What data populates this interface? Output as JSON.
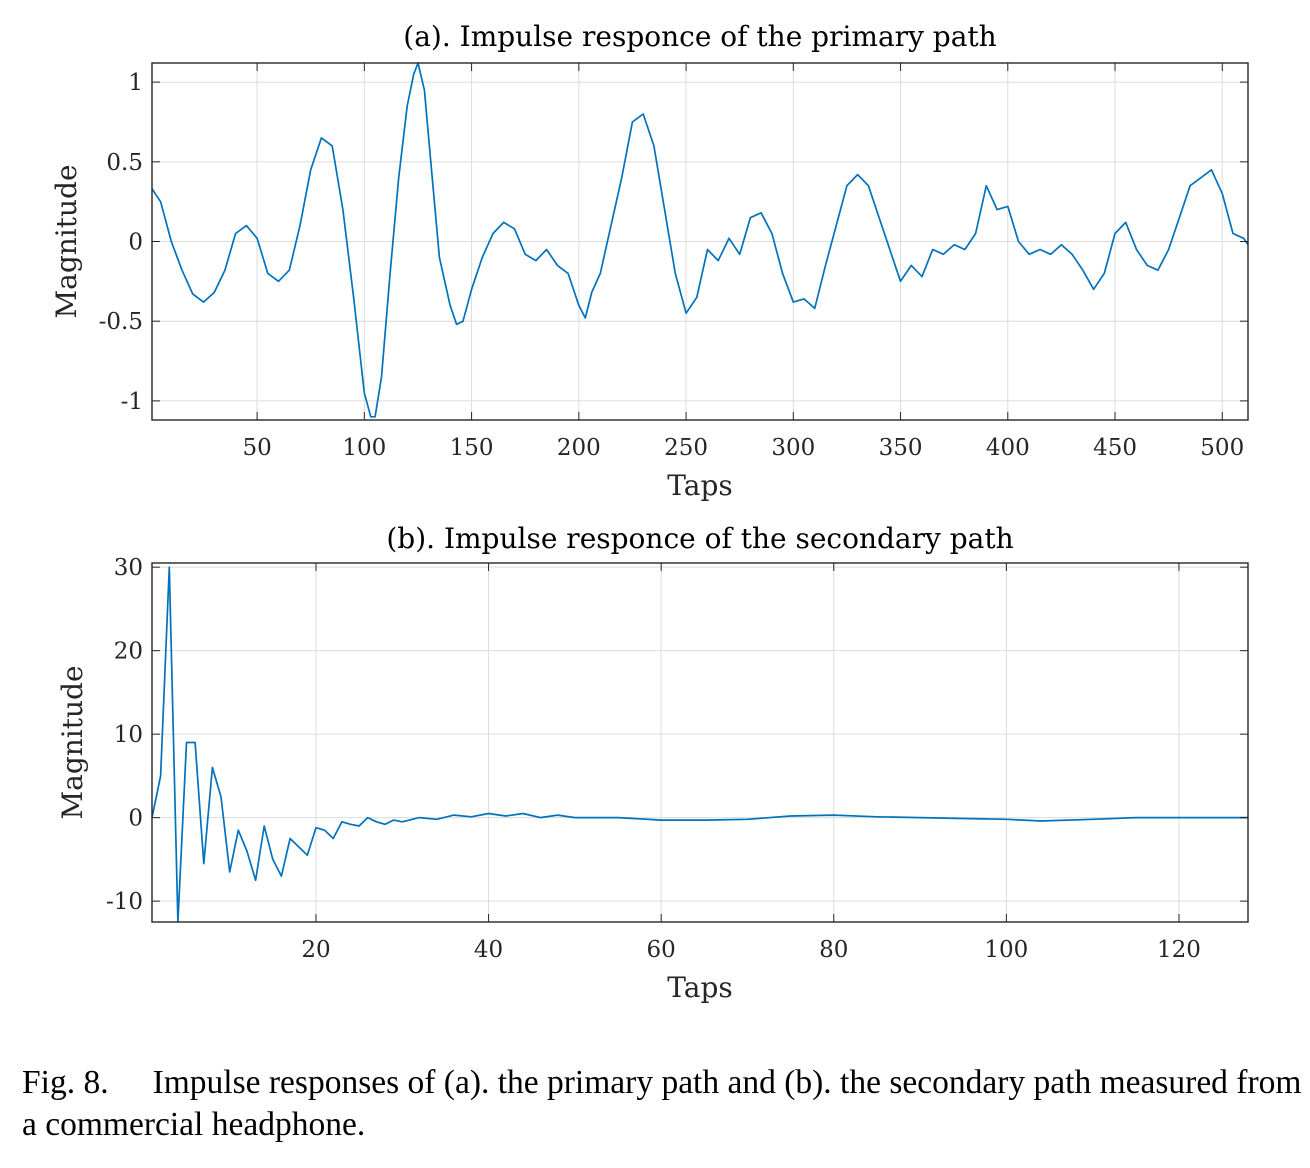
{
  "chart_data": [
    {
      "type": "line",
      "title": "(a). Impulse responce of the primary path",
      "xlabel": "Taps",
      "ylabel": "Magnitude",
      "xlim": [
        1,
        512
      ],
      "ylim": [
        -1.12,
        1.12
      ],
      "xticks": [
        50,
        100,
        150,
        200,
        250,
        300,
        350,
        400,
        450,
        500
      ],
      "yticks": [
        -1,
        -0.5,
        0,
        0.5,
        1
      ],
      "ytick_labels": [
        "-1",
        "-0.5",
        "0",
        "0.5",
        "1"
      ],
      "grid": true,
      "line_color": "#0072BD",
      "series": [
        {
          "x": [
            1,
            5,
            10,
            15,
            20,
            25,
            30,
            35,
            40,
            45,
            50,
            55,
            60,
            65,
            70,
            75,
            80,
            85,
            90,
            95,
            100,
            103,
            105,
            108,
            112,
            116,
            120,
            123,
            125,
            128,
            131,
            135,
            140,
            143,
            146,
            150,
            155,
            160,
            165,
            170,
            175,
            180,
            185,
            190,
            195,
            200,
            203,
            206,
            210,
            215,
            220,
            225,
            230,
            235,
            240,
            245,
            250,
            255,
            260,
            265,
            270,
            275,
            280,
            285,
            290,
            295,
            300,
            305,
            310,
            315,
            320,
            325,
            330,
            335,
            340,
            345,
            350,
            355,
            360,
            365,
            370,
            375,
            380,
            385,
            390,
            395,
            400,
            405,
            410,
            415,
            420,
            425,
            430,
            435,
            440,
            445,
            450,
            455,
            460,
            465,
            470,
            475,
            480,
            485,
            490,
            495,
            500,
            505,
            510,
            512
          ],
          "y": [
            0.33,
            0.25,
            0.0,
            -0.18,
            -0.33,
            -0.38,
            -0.32,
            -0.18,
            0.05,
            0.1,
            0.02,
            -0.2,
            -0.25,
            -0.18,
            0.1,
            0.45,
            0.65,
            0.6,
            0.2,
            -0.35,
            -0.95,
            -1.1,
            -1.1,
            -0.85,
            -0.2,
            0.4,
            0.85,
            1.05,
            1.12,
            0.95,
            0.5,
            -0.1,
            -0.4,
            -0.52,
            -0.5,
            -0.3,
            -0.1,
            0.05,
            0.12,
            0.08,
            -0.08,
            -0.12,
            -0.05,
            -0.15,
            -0.2,
            -0.4,
            -0.48,
            -0.32,
            -0.2,
            0.1,
            0.4,
            0.75,
            0.8,
            0.6,
            0.2,
            -0.2,
            -0.45,
            -0.35,
            -0.05,
            -0.12,
            0.02,
            -0.08,
            0.15,
            0.18,
            0.05,
            -0.2,
            -0.38,
            -0.36,
            -0.42,
            -0.15,
            0.1,
            0.35,
            0.42,
            0.35,
            0.15,
            -0.05,
            -0.25,
            -0.15,
            -0.22,
            -0.05,
            -0.08,
            -0.02,
            -0.05,
            0.05,
            0.35,
            0.2,
            0.22,
            0.0,
            -0.08,
            -0.05,
            -0.08,
            -0.02,
            -0.08,
            -0.18,
            -0.3,
            -0.2,
            0.05,
            0.12,
            -0.05,
            -0.15,
            -0.18,
            -0.05,
            0.15,
            0.35,
            0.4,
            0.45,
            0.3,
            0.05,
            0.02,
            -0.02
          ]
        }
      ]
    },
    {
      "type": "line",
      "title": "(b). Impulse responce of the secondary path",
      "xlabel": "Taps",
      "ylabel": "Magnitude",
      "xlim": [
        1,
        128
      ],
      "ylim": [
        -12.5,
        30.5
      ],
      "xticks": [
        20,
        40,
        60,
        80,
        100,
        120
      ],
      "yticks": [
        -10,
        0,
        10,
        20,
        30
      ],
      "ytick_labels": [
        "-10",
        "0",
        "10",
        "20",
        "30"
      ],
      "grid": true,
      "line_color": "#0072BD",
      "series": [
        {
          "x": [
            1,
            2,
            3,
            4,
            5,
            6,
            7,
            8,
            9,
            10,
            11,
            12,
            13,
            14,
            15,
            16,
            17,
            18,
            19,
            20,
            21,
            22,
            23,
            24,
            25,
            26,
            27,
            28,
            29,
            30,
            32,
            34,
            36,
            38,
            40,
            42,
            44,
            46,
            48,
            50,
            55,
            60,
            65,
            70,
            75,
            80,
            85,
            90,
            95,
            100,
            104,
            110,
            115,
            120,
            125,
            128
          ],
          "y": [
            0,
            5,
            30,
            -12.5,
            9,
            9,
            -5.5,
            6,
            2.5,
            -6.5,
            -1.5,
            -4,
            -7.5,
            -1,
            -5,
            -7,
            -2.5,
            -3.5,
            -4.5,
            -1.2,
            -1.5,
            -2.5,
            -0.5,
            -0.8,
            -1,
            0,
            -0.5,
            -0.8,
            -0.3,
            -0.5,
            0,
            -0.2,
            0.3,
            0.1,
            0.5,
            0.2,
            0.5,
            0,
            0.3,
            0,
            0,
            -0.3,
            -0.3,
            -0.2,
            0.2,
            0.3,
            0.1,
            0,
            -0.1,
            -0.2,
            -0.4,
            -0.2,
            0,
            0,
            0,
            0
          ]
        }
      ]
    }
  ],
  "caption": {
    "label": "Fig. 8.",
    "text": "Impulse responses of (a). the primary path and (b). the secondary path measured from a commercial headphone."
  }
}
